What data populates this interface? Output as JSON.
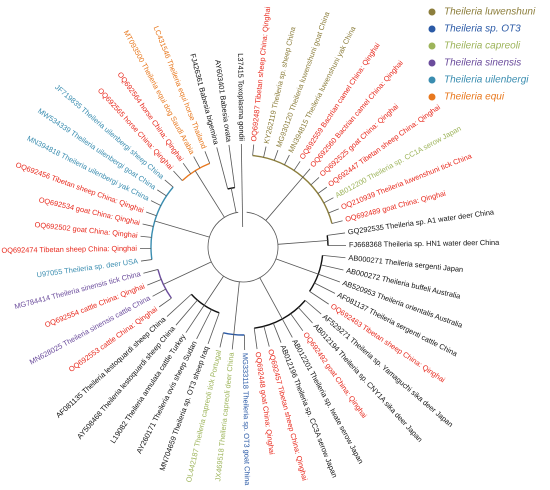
{
  "legend": [
    {
      "label": "Theileria luwenshuni",
      "color": "#8c7e3c"
    },
    {
      "label": "Theileria sp. OT3",
      "color": "#2b5aa6"
    },
    {
      "label": "Theileria capreoli",
      "color": "#9db45a"
    },
    {
      "label": "Theileria sinensis",
      "color": "#6b4c9c"
    },
    {
      "label": "Theileria uilenbergi",
      "color": "#3a8db0"
    },
    {
      "label": "Theileria equi",
      "color": "#e8781e"
    }
  ],
  "leaves": [
    {
      "label": "OQ692487 Tibetan sheep China: Qinghai",
      "color": "#e8281c"
    },
    {
      "label": "KY262119 Theileria sp. sheep China",
      "color": "#8c7e3c"
    },
    {
      "label": "MG930120 Theileria luwenshuni goat China",
      "color": "#8c7e3c"
    },
    {
      "label": "MN394815 Theileria luwenshuni yak China",
      "color": "#8c7e3c"
    },
    {
      "label": "OQ692559 Bactrian camel China: Qinghai",
      "color": "#e8281c"
    },
    {
      "label": "OQ692560 Bactrian camel China: Qinghai",
      "color": "#e8281c"
    },
    {
      "label": "OQ692525 goat China: Qinghai",
      "color": "#e8281c"
    },
    {
      "label": "OQ692447 Tibetan sheep China: Qinghai",
      "color": "#e8281c"
    },
    {
      "label": "AB012200 Theileria sp. CC1A serow Japan",
      "color": "#9db45a"
    },
    {
      "label": "OQ210939 Theileria luwenshuni tick China",
      "color": "#e8281c"
    },
    {
      "label": "OQ692489 goat China: Qinghai",
      "color": "#e8281c"
    },
    {
      "label": "GQ292535 Theileria sp. A1 water deer China",
      "color": "#111111"
    },
    {
      "label": "FJ668368 Theileria sp. HN1 water deer China",
      "color": "#111111"
    },
    {
      "label": "AB000271 Theileria sergenti Japan",
      "color": "#111111"
    },
    {
      "label": "AB000272 Theileria buffeli Australia",
      "color": "#111111"
    },
    {
      "label": "AB520953 Theileria orientalis Australia",
      "color": "#111111"
    },
    {
      "label": "AF081137 Theileria sergenti cattle China",
      "color": "#111111"
    },
    {
      "label": "OQ692463 Tibetan sheep China: Qinghai",
      "color": "#e8281c"
    },
    {
      "label": "AF529271 Theileria sp. Yamaguchi sika deer Japan",
      "color": "#111111"
    },
    {
      "label": "AB012194 Theileria sp. CNY1A sika deer Japan",
      "color": "#111111"
    },
    {
      "label": "OQ692492 goat China: Qinghai",
      "color": "#e8281c"
    },
    {
      "label": "AB012201 Theileria sp. Iwate serow Japan",
      "color": "#111111"
    },
    {
      "label": "AB012196 Theileria sp. CC3A serow Japan",
      "color": "#111111"
    },
    {
      "label": "OQ692457 Tibetan sheep China: Qinghai",
      "color": "#e8281c"
    },
    {
      "label": "OQ692448 goat China: Qinghai",
      "color": "#e8281c"
    },
    {
      "label": "MG333118 Theileria sp. OT3 goat China",
      "color": "#2b5aa6"
    },
    {
      "label": "JX469518 Theileria capreoli deer China",
      "color": "#9db45a"
    },
    {
      "label": "OL442187 Theileria capreoli tick Portugal",
      "color": "#9db45a"
    },
    {
      "label": "MN704659 Theileria sp. OT3 sheep Iraq",
      "color": "#111111"
    },
    {
      "label": "AY260171 Theileria ovis sheep Sudan",
      "color": "#111111"
    },
    {
      "label": "L19082 Theileria annulata cattle Turkey",
      "color": "#111111"
    },
    {
      "label": "AY508468 Theileria lestoquardi sheep China",
      "color": "#111111"
    },
    {
      "label": "AF081135 Theileria lestoquardi sheep China",
      "color": "#111111"
    },
    {
      "label": "OQ692553 cattle China: Qinghai",
      "color": "#e8281c"
    },
    {
      "label": "MN628025 Theileria sinensis cattle China",
      "color": "#6b4c9c"
    },
    {
      "label": "OQ692554 cattle China: Qinghai",
      "color": "#e8281c"
    },
    {
      "label": "MG784414 Theileria sinensis tick China",
      "color": "#6b4c9c"
    },
    {
      "label": "U97055 Theileria sp. deer USA",
      "color": "#3a8db0"
    },
    {
      "label": "OQ692474 Tibetan sheep China: Qinghai",
      "color": "#e8281c"
    },
    {
      "label": "OQ692502 goat China: Qinghai",
      "color": "#e8281c"
    },
    {
      "label": "OQ692534 goat China: Qinghai",
      "color": "#e8281c"
    },
    {
      "label": "OQ692456 Tibetan sheep China: Qinghai",
      "color": "#e8281c"
    },
    {
      "label": "MN394818 Theileria uilenbergi yak China",
      "color": "#3a8db0"
    },
    {
      "label": "MW534339 Theileria uilenbergi goat China",
      "color": "#3a8db0"
    },
    {
      "label": "JF719835 Theileria uilenbergi sheep China",
      "color": "#3a8db0"
    },
    {
      "label": "OQ692565 horse China: Qinghai",
      "color": "#e8281c"
    },
    {
      "label": "OQ692564 horse China: Qinghai",
      "color": "#e8281c"
    },
    {
      "label": "MT093500 Theileria equi dog Saudi Arabia",
      "color": "#e8781e"
    },
    {
      "label": "LC431546 Theileria equi horse Thailand",
      "color": "#e8781e"
    },
    {
      "label": "FJ426361 Babesia bigemina",
      "color": "#111111"
    },
    {
      "label": "AY603401 Babesia ovata",
      "color": "#111111"
    },
    {
      "label": "L37415 Toxoplasma gondii",
      "color": "#111111"
    }
  ]
}
